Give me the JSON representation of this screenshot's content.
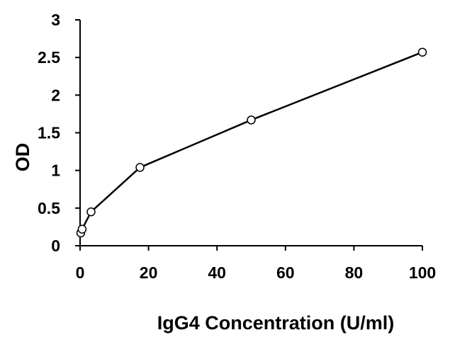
{
  "chart_data": {
    "type": "line",
    "title": "",
    "xlabel": "IgG4 Concentration (U/ml)",
    "ylabel": "OD",
    "xlim": [
      0,
      100
    ],
    "ylim": [
      0,
      3
    ],
    "xticks": [
      0,
      20,
      40,
      60,
      80,
      100
    ],
    "yticks": [
      0,
      0.5,
      1,
      1.5,
      2,
      2.5,
      3
    ],
    "ytick_labels": [
      "0",
      "0.5",
      "1",
      "1.5",
      "2",
      "2.5",
      "3"
    ],
    "grid": false,
    "legend": "none",
    "marker": "open-circle",
    "line_color": "#000000",
    "series": [
      {
        "x": [
          0.2,
          0.6,
          3.2,
          17.5,
          50,
          100
        ],
        "y": [
          0.17,
          0.22,
          0.45,
          1.04,
          1.67,
          2.57
        ]
      }
    ]
  }
}
